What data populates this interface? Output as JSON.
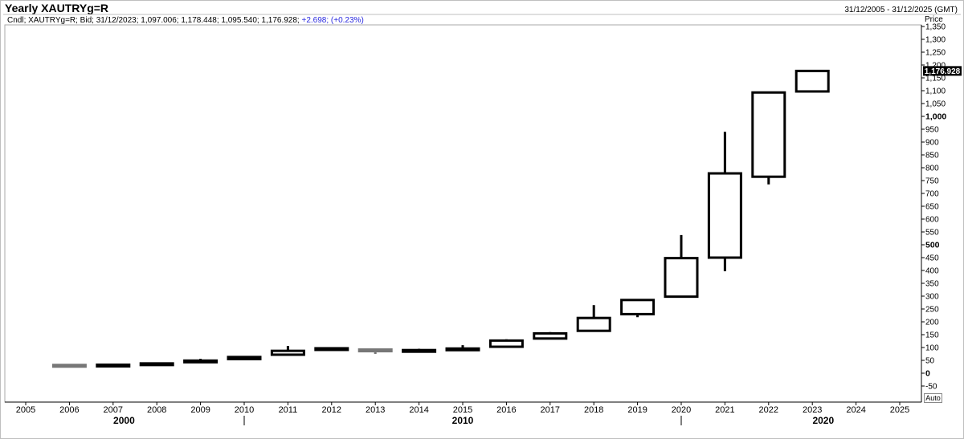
{
  "header": {
    "title": "Yearly XAUTRYg=R",
    "date_range": "31/12/2005 - 31/12/2025 (GMT)"
  },
  "legend": {
    "text": "Cndl; XAUTRYg=R; Bid; 31/12/2023; 1,097.006; 1,178.448; 1,095.540; 1,176.928;",
    "change": "+2.698;",
    "change_pct": "(+0.23%)"
  },
  "axis": {
    "price_label": "Price",
    "auto_label": "Auto",
    "last_price_label": "1,176.928"
  },
  "chart_data": {
    "type": "candlestick",
    "title": "Yearly XAUTRYg=R",
    "ylabel": "Price",
    "ylim": [
      -75,
      1375
    ],
    "yticks": [
      -50,
      0,
      50,
      100,
      150,
      200,
      250,
      300,
      350,
      400,
      450,
      500,
      550,
      600,
      650,
      700,
      750,
      800,
      850,
      900,
      950,
      1000,
      1050,
      1100,
      1150,
      1200,
      1250,
      1300,
      1350
    ],
    "ytick_labels": [
      "-50",
      "0",
      "50",
      "100",
      "150",
      "200",
      "250",
      "300",
      "350",
      "400",
      "450",
      "500",
      "550",
      "600",
      "650",
      "700",
      "750",
      "800",
      "850",
      "900",
      "950",
      "1,000",
      "1,050",
      "1,100",
      "1,150",
      "1,200",
      "1,250",
      "1,300",
      "1,350"
    ],
    "bold_yticks": [
      0,
      500,
      1000
    ],
    "year_ticks": [
      "2005",
      "2006",
      "2007",
      "2008",
      "2009",
      "2010",
      "2011",
      "2012",
      "2013",
      "2014",
      "2015",
      "2016",
      "2017",
      "2018",
      "2019",
      "2020",
      "2021",
      "2022",
      "2023",
      "2024",
      "2025"
    ],
    "decade_labels": [
      {
        "label": "2000",
        "year": 2007.25
      },
      {
        "label": "2010",
        "year": 2015
      },
      {
        "label": "2020",
        "year": 2023.25
      }
    ],
    "decade_dividers": [
      2010,
      2020
    ],
    "last_price": 1176.928,
    "candles": [
      {
        "year": 2006,
        "open": 32,
        "high": 34,
        "low": 29,
        "close": 31
      },
      {
        "year": 2007,
        "open": 31,
        "high": 34,
        "low": 30,
        "close": 33
      },
      {
        "year": 2008,
        "open": 37,
        "high": 42,
        "low": 30,
        "close": 38
      },
      {
        "year": 2009,
        "open": 47,
        "high": 56,
        "low": 44,
        "close": 49
      },
      {
        "year": 2010,
        "open": 55,
        "high": 65,
        "low": 53,
        "close": 63
      },
      {
        "year": 2011,
        "open": 72,
        "high": 106,
        "low": 70,
        "close": 87
      },
      {
        "year": 2012,
        "open": 95,
        "high": 100,
        "low": 92,
        "close": 97
      },
      {
        "year": 2013,
        "open": 92,
        "high": 93,
        "low": 75,
        "close": 86
      },
      {
        "year": 2014,
        "open": 85,
        "high": 95,
        "low": 83,
        "close": 90
      },
      {
        "year": 2015,
        "open": 93,
        "high": 109,
        "low": 91,
        "close": 96
      },
      {
        "year": 2016,
        "open": 103,
        "high": 132,
        "low": 103,
        "close": 127
      },
      {
        "year": 2017,
        "open": 135,
        "high": 160,
        "low": 135,
        "close": 155
      },
      {
        "year": 2018,
        "open": 165,
        "high": 265,
        "low": 163,
        "close": 215
      },
      {
        "year": 2019,
        "open": 230,
        "high": 288,
        "low": 218,
        "close": 285
      },
      {
        "year": 2020,
        "open": 298,
        "high": 538,
        "low": 298,
        "close": 448
      },
      {
        "year": 2021,
        "open": 450,
        "high": 940,
        "low": 397,
        "close": 778
      },
      {
        "year": 2022,
        "open": 765,
        "high": 1093,
        "low": 735,
        "close": 1093
      },
      {
        "year": 2023,
        "open": 1097.006,
        "high": 1178.448,
        "low": 1095.54,
        "close": 1176.928
      }
    ]
  }
}
